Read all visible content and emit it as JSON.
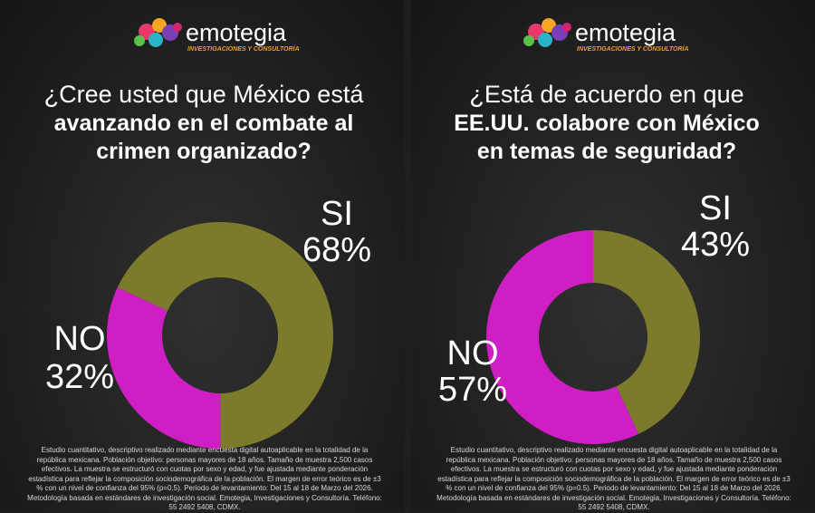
{
  "brand": {
    "name": "emotegia",
    "tagline": "INVESTIGACIONES Y CONSULTORÍA"
  },
  "footnote": "Estudio cuantitativo, descriptivo realizado mediante encuesta digital autoaplicable en la totalidad de la  república mexicana. Población objetivo: personas mayores de 18 años. Tamaño de muestra 2,500 casos efectivos. La muestra se estructuró con cuotas por sexo y edad, y fue ajustada mediante ponderación estadística para reflejar la composición sociodemográfica de la población. El margen de error teórico es de ±3 % con un nivel de confianza del 95% (p=0.5). Periodo de levantamiento:  Del 15 al 18 de Marzo del 2026. Metodología basada en estándares de investigación social. Emotegia, Investigaciones y Consultoría. Teléfono: 55 2492 5408, CDMX.",
  "chart_data": [
    {
      "type": "donut",
      "title": [
        "¿Cree usted que México está",
        "avanzando en el combate al",
        "crimen organizado?"
      ],
      "categories": [
        "SI",
        "NO"
      ],
      "values": [
        68,
        32
      ],
      "value_labels": [
        "68%",
        "32%"
      ],
      "colors": [
        "#7c7b2c",
        "#cf1fc4"
      ]
    },
    {
      "type": "donut",
      "title": [
        "¿Está de acuerdo en que",
        "EE.UU. colabore con México",
        "en temas de seguridad?"
      ],
      "categories": [
        "SI",
        "NO"
      ],
      "values": [
        43,
        57
      ],
      "value_labels": [
        "43%",
        "57%"
      ],
      "colors": [
        "#7c7b2c",
        "#cf1fc4"
      ]
    }
  ]
}
